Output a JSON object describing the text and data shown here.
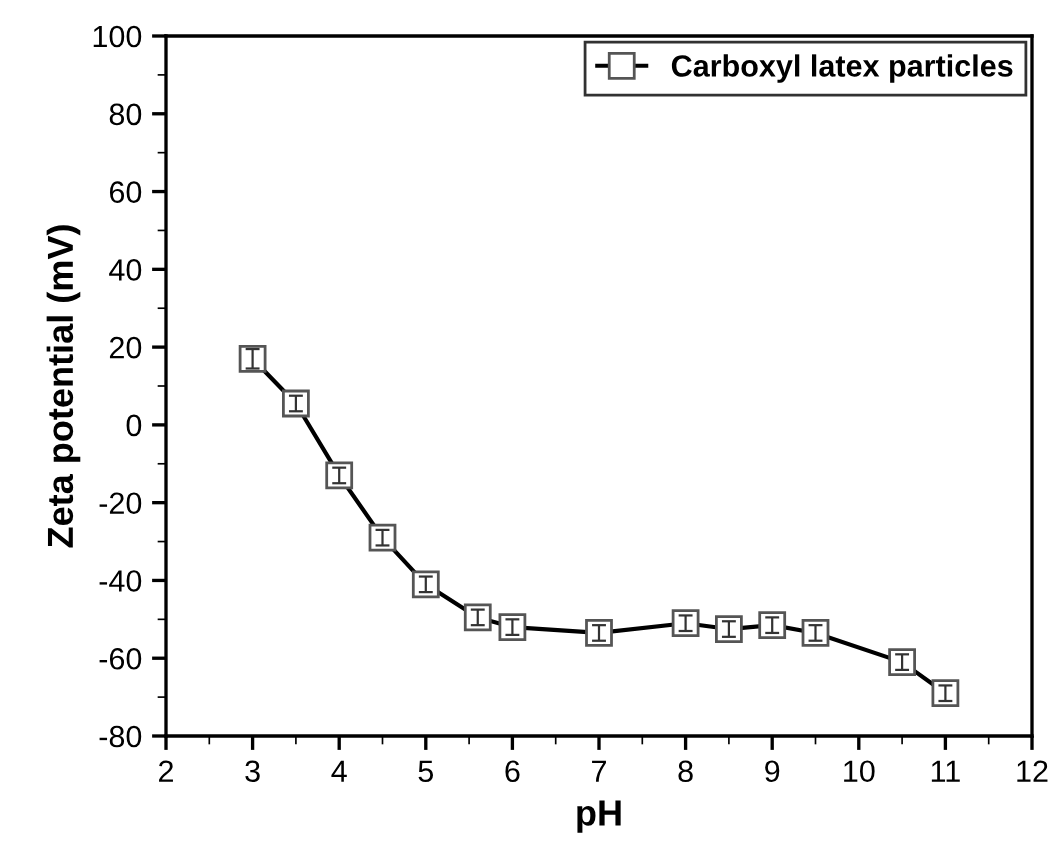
{
  "chart_data": {
    "type": "line",
    "xlabel": "pH",
    "ylabel": "Zeta potential (mV)",
    "x": [
      3,
      3.5,
      4,
      4.5,
      5,
      5.6,
      6,
      7,
      8,
      8.5,
      9,
      9.5,
      10.5,
      11
    ],
    "series": [
      {
        "name": "Carboxyl latex particles",
        "color": "#000000",
        "values": [
          17,
          5.5,
          -13,
          -29,
          -41,
          -49.5,
          -52,
          -53.5,
          -51,
          -52.5,
          -51.5,
          -53.5,
          -61,
          -69
        ],
        "errors": [
          2.5,
          2,
          2,
          2,
          2,
          2,
          2,
          2,
          2,
          2,
          2,
          2,
          2,
          2
        ]
      }
    ],
    "xlim": [
      2,
      12
    ],
    "xticks": [
      2,
      3,
      4,
      5,
      6,
      7,
      8,
      9,
      10,
      11,
      12
    ],
    "ylim": [
      -80,
      100
    ],
    "yticks": [
      -80,
      -60,
      -40,
      -20,
      0,
      20,
      40,
      60,
      80,
      100
    ],
    "marker": "square",
    "line_style": "solid",
    "legend": "top right",
    "grid": false
  }
}
